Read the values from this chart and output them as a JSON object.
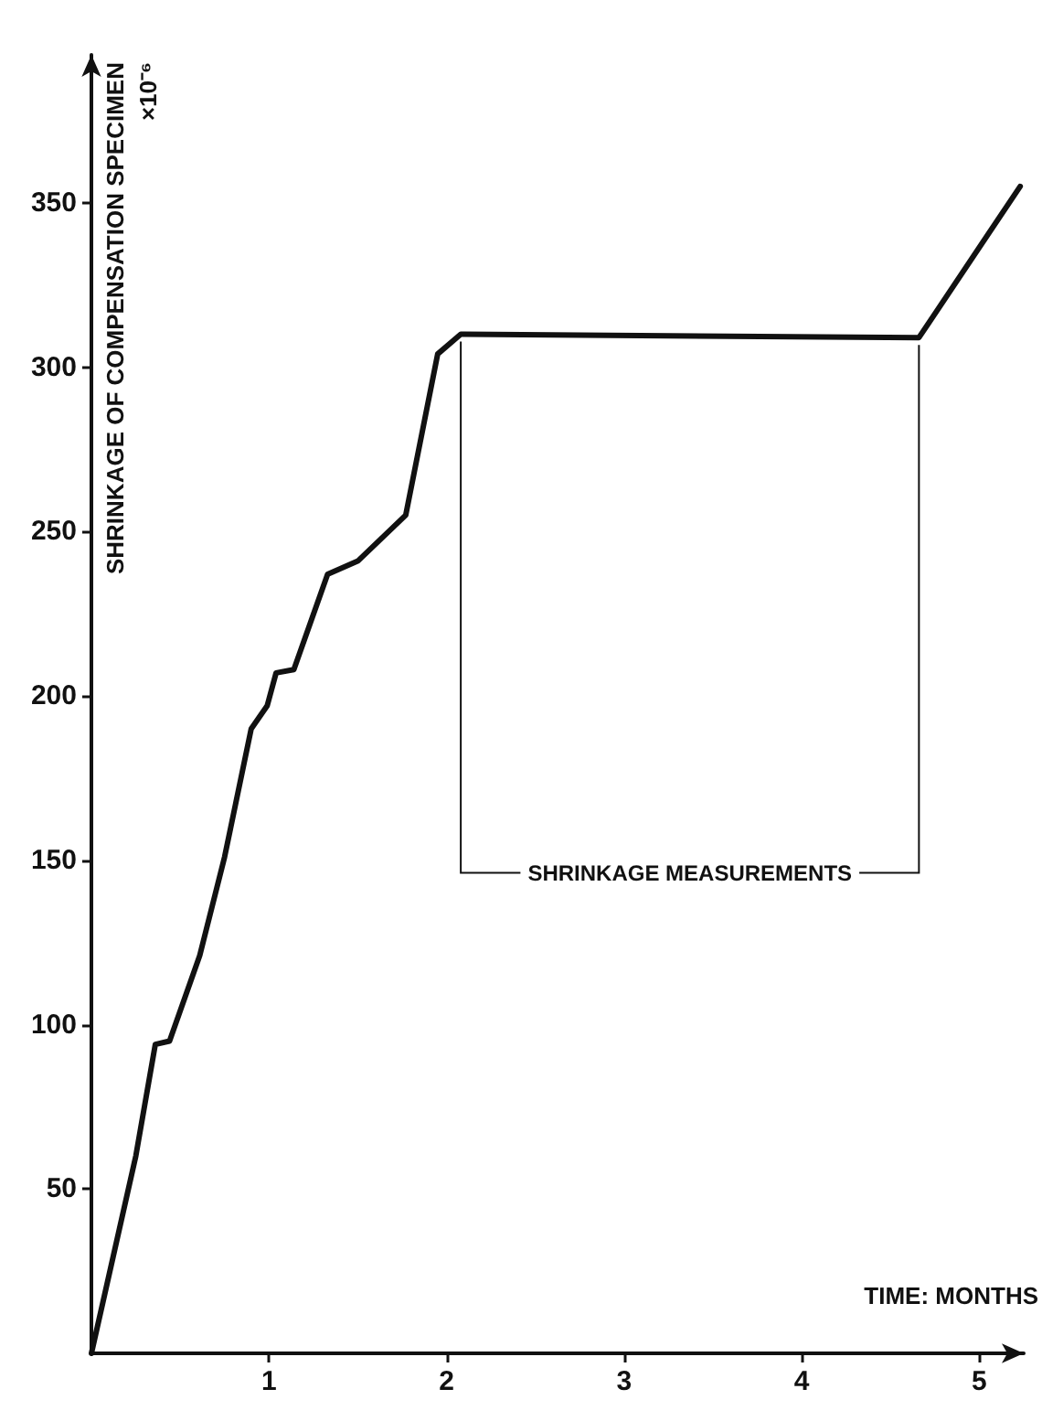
{
  "chart_data": {
    "type": "line",
    "xlabel": "TIME: MONTHS",
    "ylabel": "SHRINKAGE OF COMPENSATION SPECIMEN\n×10⁻⁶",
    "x": [
      0,
      0.25,
      0.36,
      0.44,
      0.61,
      0.75,
      0.9,
      0.99,
      1.04,
      1.14,
      1.33,
      1.5,
      1.77,
      1.95,
      2.08,
      4.66,
      5.23
    ],
    "series": [
      {
        "color": "#111111",
        "values": [
          0,
          60,
          94,
          95,
          121,
          151,
          190,
          197,
          207,
          208,
          237,
          241,
          255,
          304,
          310,
          309,
          355
        ]
      }
    ],
    "xlim": [
      0,
      5.25
    ],
    "xticks": [
      1,
      2,
      3,
      4,
      5
    ],
    "ylim": [
      0,
      395
    ],
    "yticks": [
      50,
      100,
      150,
      200,
      250,
      300,
      350
    ],
    "grid": false,
    "marker": "none",
    "line_style": "solid",
    "annotations": [
      "SHRINKAGE MEASUREMENTS"
    ]
  }
}
